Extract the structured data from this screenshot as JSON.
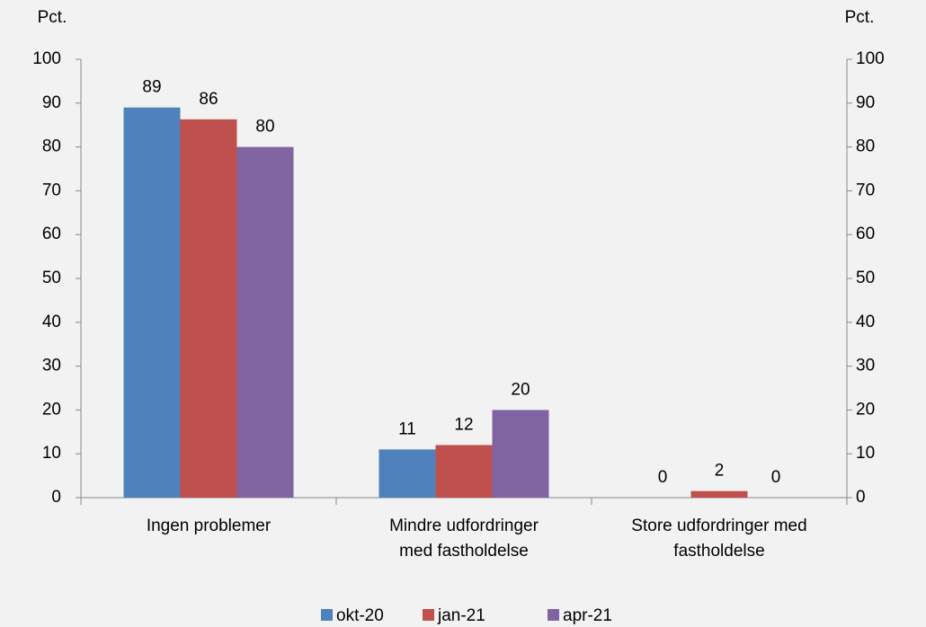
{
  "chart_data": {
    "type": "bar",
    "ylabel": "Pct.",
    "y2label": "Pct.",
    "categories": [
      [
        "Ingen problemer"
      ],
      [
        "Mindre udfordringer",
        "med fastholdelse"
      ],
      [
        "Store udfordringer med",
        "fastholdelse"
      ]
    ],
    "series": [
      {
        "name": "okt-20",
        "color": "#4f81bd",
        "values": [
          89,
          11,
          0
        ]
      },
      {
        "name": "jan-21",
        "color": "#c0504d",
        "values": [
          86.3,
          12,
          1.5
        ],
        "value_labels": [
          "86",
          "12",
          "2"
        ]
      },
      {
        "name": "apr-21",
        "color": "#8064a2",
        "values": [
          80,
          20,
          0
        ]
      }
    ],
    "ylim": [
      0,
      100
    ],
    "yticks": [
      0,
      10,
      20,
      30,
      40,
      50,
      60,
      70,
      80,
      90,
      100
    ],
    "y2lim": [
      0,
      100
    ],
    "y2ticks": [
      0,
      10,
      20,
      30,
      40,
      50,
      60,
      70,
      80,
      90,
      100
    ],
    "grid": false,
    "legend": "bottom"
  }
}
